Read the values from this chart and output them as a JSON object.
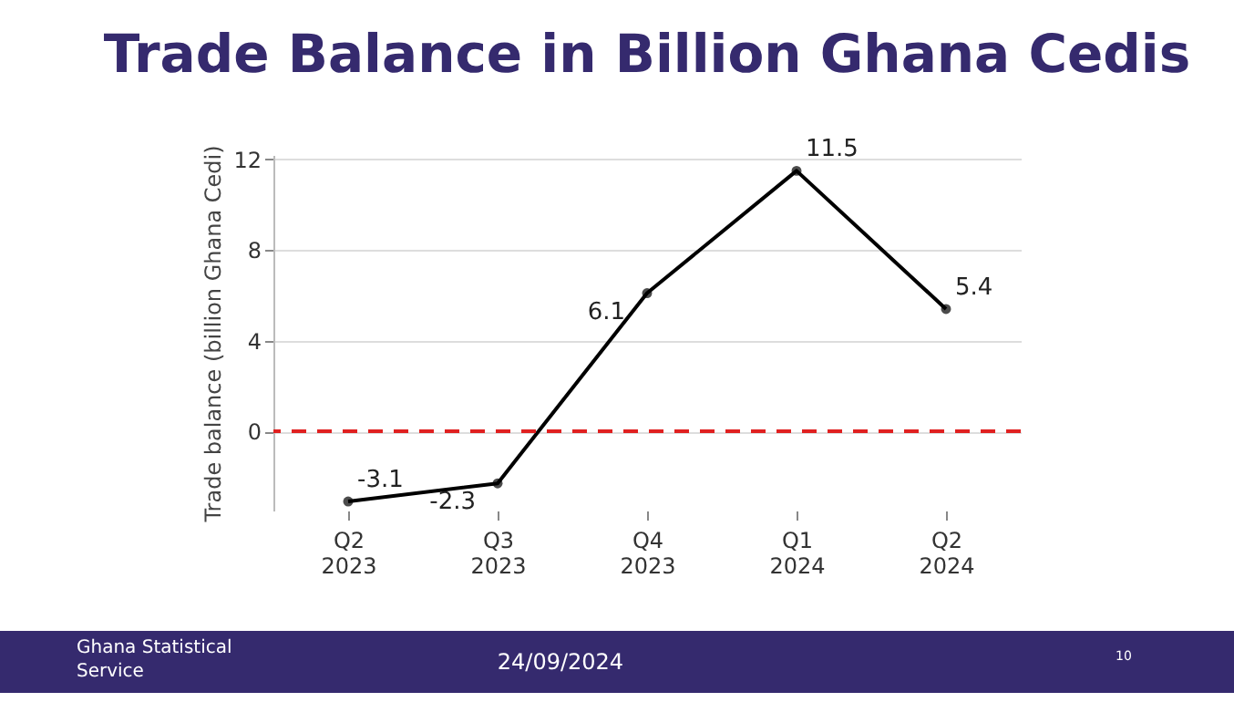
{
  "chart_data": {
    "type": "line",
    "title": "Trade Balance in Billion Ghana Cedis",
    "ylabel": "Trade balance (billion Ghana Cedi)",
    "categories": [
      "Q2\n2023",
      "Q3\n2023",
      "Q4\n2023",
      "Q1\n2024",
      "Q2\n2024"
    ],
    "series": [
      {
        "color": "#000000",
        "values": [
          -3.1,
          -2.3,
          6.1,
          11.5,
          5.4
        ]
      }
    ],
    "ylim": [
      -3.5,
      12.2
    ],
    "yticks": [
      0,
      4,
      8,
      12
    ],
    "grid": "y",
    "marker": "circle",
    "line_style": "solid",
    "data_labels": true,
    "ref_lines": [
      {
        "axis": "y",
        "value": 0,
        "color": "#e02020",
        "line_style": "dashed"
      }
    ],
    "annotations": [
      "Ghana Statistical Service",
      "24/09/2024",
      "10"
    ]
  }
}
